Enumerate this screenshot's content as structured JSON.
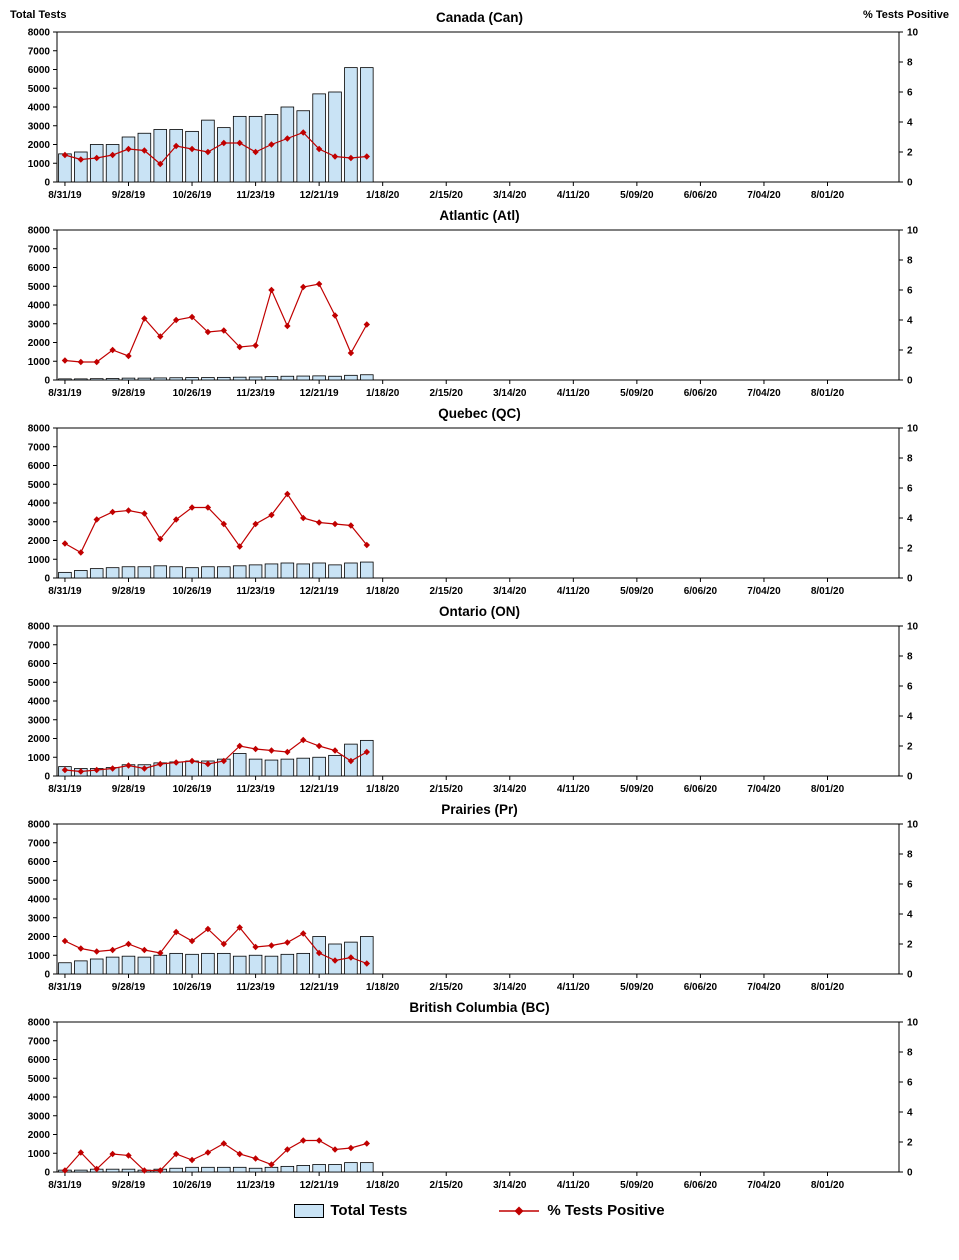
{
  "page": {
    "left_axis_title": "Total Tests",
    "right_axis_title": "% Tests Positive",
    "legend": {
      "bars_label": "Total Tests",
      "line_label": "% Tests Positive"
    }
  },
  "colors": {
    "bar_fill": "#c9e3f5",
    "bar_border": "#000000",
    "line": "#c00000"
  },
  "axes": {
    "y_left": {
      "title": "Total Tests",
      "min": 0,
      "max": 8000,
      "step": 1000
    },
    "y_right": {
      "title": "% Tests Positive",
      "min": 0,
      "max": 10,
      "step": 2
    },
    "x_tick_labels": [
      "8/31/19",
      "9/28/19",
      "10/26/19",
      "11/23/19",
      "12/21/19",
      "1/18/20",
      "2/15/20",
      "3/14/20",
      "4/11/20",
      "5/09/20",
      "6/06/20",
      "7/04/20",
      "8/01/20"
    ],
    "x_tick_every": 4,
    "x_slots": 53
  },
  "chart_data": [
    {
      "type": "bar+line",
      "title": "Canada (Can)",
      "x": [
        "8/31/19",
        "9/07/19",
        "9/14/19",
        "9/21/19",
        "9/28/19",
        "10/05/19",
        "10/12/19",
        "10/19/19",
        "10/26/19",
        "11/02/19",
        "11/09/19",
        "11/16/19",
        "11/23/19",
        "11/30/19",
        "12/07/19",
        "12/14/19",
        "12/21/19",
        "12/28/19",
        "1/04/20",
        "1/11/20"
      ],
      "series": [
        {
          "name": "Total Tests",
          "type": "bar",
          "axis": "left",
          "values": [
            1500,
            1600,
            2000,
            2000,
            2400,
            2600,
            2800,
            2800,
            2700,
            3300,
            2900,
            3500,
            3500,
            3600,
            4000,
            3800,
            4700,
            4800,
            6100,
            6100
          ]
        },
        {
          "name": "% Tests Positive",
          "type": "line",
          "axis": "right",
          "values": [
            1.8,
            1.5,
            1.6,
            1.8,
            2.2,
            2.1,
            1.2,
            2.4,
            2.2,
            2.0,
            2.6,
            2.6,
            2.0,
            2.5,
            2.9,
            3.3,
            2.2,
            1.7,
            1.6,
            1.7
          ]
        }
      ]
    },
    {
      "type": "bar+line",
      "title": "Atlantic (Atl)",
      "x": [
        "8/31/19",
        "9/07/19",
        "9/14/19",
        "9/21/19",
        "9/28/19",
        "10/05/19",
        "10/12/19",
        "10/19/19",
        "10/26/19",
        "11/02/19",
        "11/09/19",
        "11/16/19",
        "11/23/19",
        "11/30/19",
        "12/07/19",
        "12/14/19",
        "12/21/19",
        "12/28/19",
        "1/04/20",
        "1/11/20"
      ],
      "series": [
        {
          "name": "Total Tests",
          "type": "bar",
          "axis": "left",
          "values": [
            60,
            60,
            70,
            80,
            100,
            100,
            110,
            120,
            130,
            130,
            140,
            150,
            160,
            180,
            200,
            210,
            220,
            200,
            250,
            280
          ]
        },
        {
          "name": "% Tests Positive",
          "type": "line",
          "axis": "right",
          "values": [
            1.3,
            1.2,
            1.2,
            2.0,
            1.6,
            4.1,
            2.9,
            4.0,
            4.2,
            3.2,
            3.3,
            2.2,
            2.3,
            6.0,
            3.6,
            6.2,
            6.4,
            4.3,
            1.8,
            3.7
          ]
        }
      ]
    },
    {
      "type": "bar+line",
      "title": "Quebec (QC)",
      "x": [
        "8/31/19",
        "9/07/19",
        "9/14/19",
        "9/21/19",
        "9/28/19",
        "10/05/19",
        "10/12/19",
        "10/19/19",
        "10/26/19",
        "11/02/19",
        "11/09/19",
        "11/16/19",
        "11/23/19",
        "11/30/19",
        "12/07/19",
        "12/14/19",
        "12/21/19",
        "12/28/19",
        "1/04/20",
        "1/11/20"
      ],
      "series": [
        {
          "name": "Total Tests",
          "type": "bar",
          "axis": "left",
          "values": [
            300,
            400,
            500,
            550,
            600,
            600,
            650,
            600,
            550,
            600,
            600,
            650,
            700,
            750,
            800,
            750,
            800,
            700,
            800,
            850
          ]
        },
        {
          "name": "% Tests Positive",
          "type": "line",
          "axis": "right",
          "values": [
            2.3,
            1.7,
            3.9,
            4.4,
            4.5,
            4.3,
            2.6,
            3.9,
            4.7,
            4.7,
            3.6,
            2.1,
            3.6,
            4.2,
            5.6,
            4.0,
            3.7,
            3.6,
            3.5,
            2.2
          ]
        }
      ]
    },
    {
      "type": "bar+line",
      "title": "Ontario (ON)",
      "x": [
        "8/31/19",
        "9/07/19",
        "9/14/19",
        "9/21/19",
        "9/28/19",
        "10/05/19",
        "10/12/19",
        "10/19/19",
        "10/26/19",
        "11/02/19",
        "11/09/19",
        "11/16/19",
        "11/23/19",
        "11/30/19",
        "12/07/19",
        "12/14/19",
        "12/21/19",
        "12/28/19",
        "1/04/20",
        "1/11/20"
      ],
      "series": [
        {
          "name": "Total Tests",
          "type": "bar",
          "axis": "left",
          "values": [
            500,
            400,
            400,
            450,
            600,
            600,
            700,
            750,
            800,
            800,
            900,
            1200,
            900,
            850,
            900,
            950,
            1000,
            1100,
            1700,
            1900
          ]
        },
        {
          "name": "% Tests Positive",
          "type": "line",
          "axis": "right",
          "values": [
            0.4,
            0.3,
            0.4,
            0.5,
            0.7,
            0.5,
            0.8,
            0.9,
            1.0,
            0.8,
            1.0,
            2.0,
            1.8,
            1.7,
            1.6,
            2.4,
            2.0,
            1.7,
            1.0,
            1.6
          ]
        }
      ]
    },
    {
      "type": "bar+line",
      "title": "Prairies (Pr)",
      "x": [
        "8/31/19",
        "9/07/19",
        "9/14/19",
        "9/21/19",
        "9/28/19",
        "10/05/19",
        "10/12/19",
        "10/19/19",
        "10/26/19",
        "11/02/19",
        "11/09/19",
        "11/16/19",
        "11/23/19",
        "11/30/19",
        "12/07/19",
        "12/14/19",
        "12/21/19",
        "12/28/19",
        "1/04/20",
        "1/11/20"
      ],
      "series": [
        {
          "name": "Total Tests",
          "type": "bar",
          "axis": "left",
          "values": [
            600,
            700,
            800,
            900,
            950,
            900,
            1000,
            1100,
            1050,
            1100,
            1100,
            950,
            1000,
            950,
            1050,
            1100,
            2000,
            1600,
            1700,
            2000
          ]
        },
        {
          "name": "% Tests Positive",
          "type": "line",
          "axis": "right",
          "values": [
            2.2,
            1.7,
            1.5,
            1.6,
            2.0,
            1.6,
            1.4,
            2.8,
            2.2,
            3.0,
            2.0,
            3.1,
            1.8,
            1.9,
            2.1,
            2.7,
            1.4,
            0.9,
            1.1,
            0.7
          ]
        }
      ]
    },
    {
      "type": "bar+line",
      "title": "British Columbia (BC)",
      "x": [
        "8/31/19",
        "9/07/19",
        "9/14/19",
        "9/21/19",
        "9/28/19",
        "10/05/19",
        "10/12/19",
        "10/19/19",
        "10/26/19",
        "11/02/19",
        "11/09/19",
        "11/16/19",
        "11/23/19",
        "11/30/19",
        "12/07/19",
        "12/14/19",
        "12/21/19",
        "12/28/19",
        "1/04/20",
        "1/11/20"
      ],
      "series": [
        {
          "name": "Total Tests",
          "type": "bar",
          "axis": "left",
          "values": [
            100,
            100,
            150,
            150,
            150,
            100,
            150,
            200,
            250,
            250,
            250,
            250,
            200,
            250,
            300,
            350,
            400,
            400,
            500,
            500
          ]
        },
        {
          "name": "% Tests Positive",
          "type": "line",
          "axis": "right",
          "values": [
            0.1,
            1.3,
            0.2,
            1.2,
            1.1,
            0.1,
            0.1,
            1.2,
            0.8,
            1.3,
            1.9,
            1.2,
            0.9,
            0.5,
            1.5,
            2.1,
            2.1,
            1.5,
            1.6,
            1.9
          ]
        }
      ]
    }
  ]
}
